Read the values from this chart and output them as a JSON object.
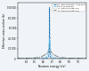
{
  "title": "",
  "xlabel": "Neutron energy (eV)",
  "ylabel": "Effective cross-section (b)",
  "legend_labels": [
    "0K - absolute zero = 273.16 K",
    "300 K (0.0258 eV)",
    "T = 1000 K (0.0897 eV)",
    "T = 3000 K (0.2587 eV)"
  ],
  "colors": [
    "#1a6faf",
    "#55bbee",
    "#aaaaaa",
    "#777777"
  ],
  "styles": [
    "dashed",
    "dashed",
    "dotted",
    "dashdot"
  ],
  "lws": [
    0.6,
    0.6,
    0.6,
    0.6
  ],
  "E0": 6.67,
  "gammas": [
    0.004,
    0.02,
    0.06,
    0.12
  ],
  "peaks": [
    100000,
    38000,
    22000,
    14000
  ],
  "xlim": [
    6.3,
    7.1
  ],
  "ylim": [
    0,
    110000
  ],
  "yticks": [
    0,
    20000,
    40000,
    60000,
    80000,
    100000
  ],
  "ytick_labels": [
    "0",
    "20 000",
    "40 000",
    "60 000",
    "80 000",
    "100 000"
  ],
  "xticks": [
    6.4,
    6.5,
    6.6,
    6.7,
    6.8,
    6.9,
    7.0
  ],
  "background_color": "#f0f4f8",
  "grid": false
}
